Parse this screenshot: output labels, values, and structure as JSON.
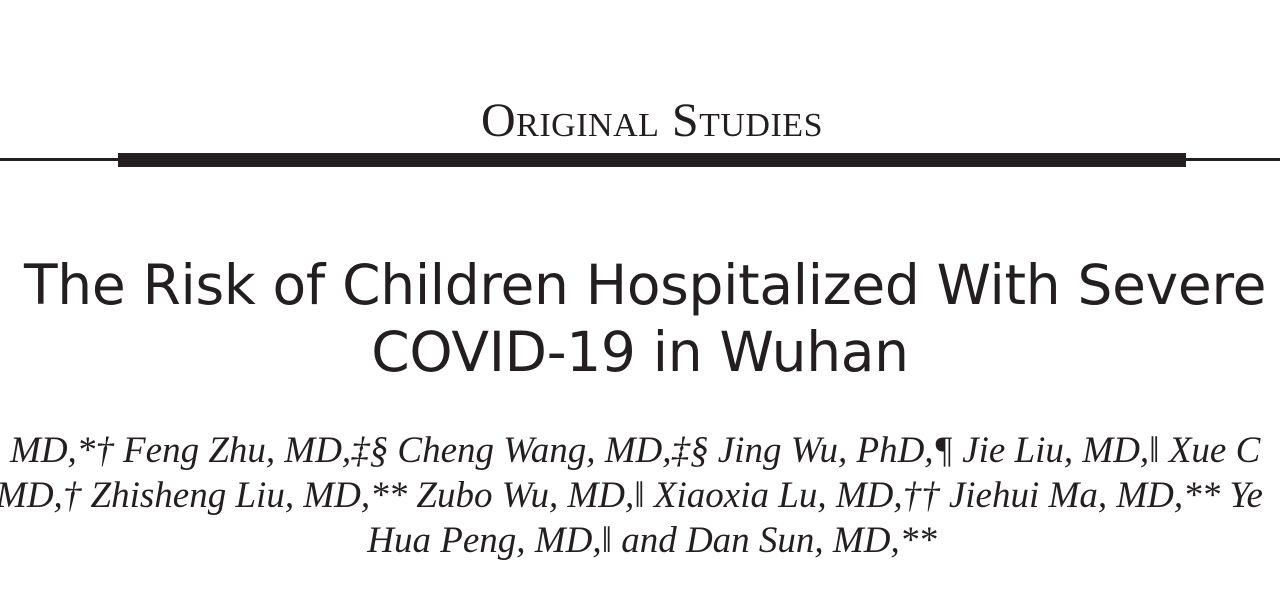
{
  "header": {
    "section_label": "Original Studies"
  },
  "article": {
    "title_line_1": "The Risk of Children Hospitalized With Severe",
    "title_line_2": "COVID-19 in Wuhan",
    "authors_line_1": "MD,*† Feng Zhu, MD,‡§ Cheng Wang, MD,‡§ Jing Wu, PhD,¶ Jie Liu, MD,‖ Xue C",
    "authors_line_2": "MD,† Zhisheng Liu, MD,** Zubo Wu, MD,‖ Xiaoxia Lu, MD,†† Jiehui Ma, MD,** Ye",
    "authors_line_3": "Hua Peng, MD,‖ and Dan Sun, MD,**"
  }
}
